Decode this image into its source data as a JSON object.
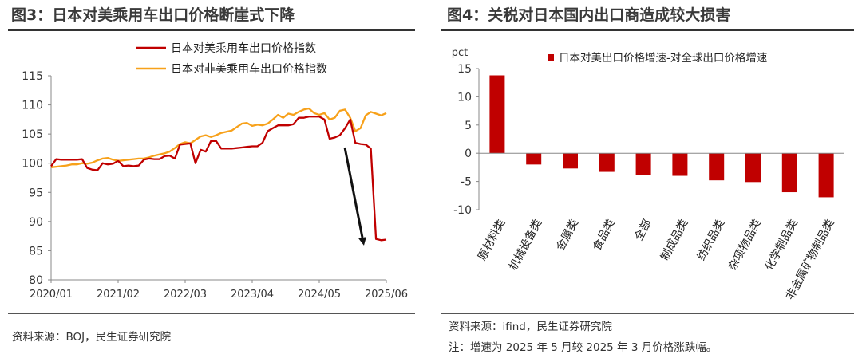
{
  "left": {
    "title": "图3：日本对美乘用车出口价格断崖式下降",
    "source": "资料来源：BOJ，民生证券研究院"
  },
  "right": {
    "title": "图4：关税对日本国内出口商造成较大损害",
    "source": "资料来源：ifind，民生证券研究院",
    "note": "注：增速为 2025 年 5 月较 2025 年 3 月价格涨跌幅。"
  },
  "colors": {
    "us": "#c00000",
    "nonus": "#f7a11a",
    "bar": "#c00000",
    "arrow": "#111111"
  },
  "chart_data": [
    {
      "type": "line",
      "title": "",
      "xlabel": "",
      "ylabel": "",
      "ylim": [
        80,
        115
      ],
      "yticks": [
        80,
        85,
        90,
        95,
        100,
        105,
        110,
        115
      ],
      "xtick_labels": [
        "2020/01",
        "2021/02",
        "2022/03",
        "2023/04",
        "2024/05",
        "2025/06"
      ],
      "x": [
        "2020/01",
        "2020/02",
        "2020/03",
        "2020/04",
        "2020/05",
        "2020/06",
        "2020/07",
        "2020/08",
        "2020/09",
        "2020/10",
        "2020/11",
        "2020/12",
        "2021/01",
        "2021/02",
        "2021/03",
        "2021/04",
        "2021/05",
        "2021/06",
        "2021/07",
        "2021/08",
        "2021/09",
        "2021/10",
        "2021/11",
        "2021/12",
        "2022/01",
        "2022/02",
        "2022/03",
        "2022/04",
        "2022/05",
        "2022/06",
        "2022/07",
        "2022/08",
        "2022/09",
        "2022/10",
        "2022/11",
        "2022/12",
        "2023/01",
        "2023/02",
        "2023/03",
        "2023/04",
        "2023/05",
        "2023/06",
        "2023/07",
        "2023/08",
        "2023/09",
        "2023/10",
        "2023/11",
        "2023/12",
        "2024/01",
        "2024/02",
        "2024/03",
        "2024/04",
        "2024/05",
        "2024/06",
        "2024/07",
        "2024/08",
        "2024/09",
        "2024/10",
        "2024/11",
        "2024/12",
        "2025/01",
        "2025/02",
        "2025/03",
        "2025/04",
        "2025/05",
        "2025/06"
      ],
      "series": [
        {
          "name": "日本对美乘用车出口价格指数",
          "values": [
            99.5,
            100.7,
            100.6,
            100.6,
            100.6,
            100.6,
            100.7,
            99.2,
            98.9,
            98.8,
            100.0,
            99.8,
            99.9,
            100.4,
            99.5,
            99.6,
            99.5,
            99.6,
            100.6,
            100.8,
            100.7,
            100.7,
            101.2,
            101.3,
            100.8,
            103.2,
            103.3,
            103.4,
            100.0,
            102.3,
            102.0,
            103.8,
            103.8,
            102.5,
            102.5,
            102.5,
            102.6,
            102.7,
            102.8,
            102.9,
            102.9,
            103.5,
            105.5,
            106.0,
            106.5,
            106.5,
            106.5,
            106.7,
            107.8,
            107.8,
            108.0,
            108.0,
            108.0,
            107.5,
            104.2,
            104.4,
            104.8,
            106.0,
            107.5,
            103.5,
            103.3,
            103.2,
            102.5,
            87.0,
            86.8,
            86.9
          ]
        },
        {
          "name": "日本对非美乘用车出口价格指数",
          "values": [
            99.3,
            99.4,
            99.5,
            99.6,
            99.8,
            99.8,
            100.0,
            99.9,
            100.1,
            100.5,
            100.8,
            100.9,
            100.6,
            100.4,
            100.5,
            100.6,
            100.7,
            100.8,
            100.8,
            101.0,
            101.3,
            101.5,
            101.7,
            102.0,
            102.6,
            103.3,
            103.6,
            103.4,
            104.0,
            104.6,
            104.8,
            104.5,
            104.8,
            105.2,
            105.4,
            105.6,
            106.2,
            106.8,
            106.9,
            106.4,
            106.6,
            106.5,
            106.8,
            107.5,
            108.3,
            107.8,
            108.5,
            108.3,
            108.8,
            109.2,
            109.4,
            108.6,
            108.3,
            108.6,
            107.5,
            107.8,
            109.0,
            109.2,
            107.8,
            105.5,
            106.0,
            108.2,
            108.8,
            108.5,
            108.2,
            108.6
          ]
        }
      ],
      "legend": "top-center",
      "grid": false
    },
    {
      "type": "bar",
      "title": "",
      "ylabel": "pct",
      "ylim": [
        -10,
        15
      ],
      "yticks": [
        -10,
        -5,
        0,
        5,
        10,
        15
      ],
      "categories": [
        "原材料类",
        "机械设备类",
        "金属类",
        "食品类",
        "全部",
        "制成品类",
        "纺织品类",
        "杂项物品类",
        "化学制品类",
        "非金属矿物制品类"
      ],
      "series": [
        {
          "name": "日本对美出口价格增速-对全球出口价格增速",
          "values": [
            13.8,
            -2.0,
            -2.7,
            -3.3,
            -3.9,
            -4.0,
            -4.8,
            -5.1,
            -6.9,
            -7.8
          ]
        }
      ],
      "legend": "top-center",
      "grid": false
    }
  ]
}
